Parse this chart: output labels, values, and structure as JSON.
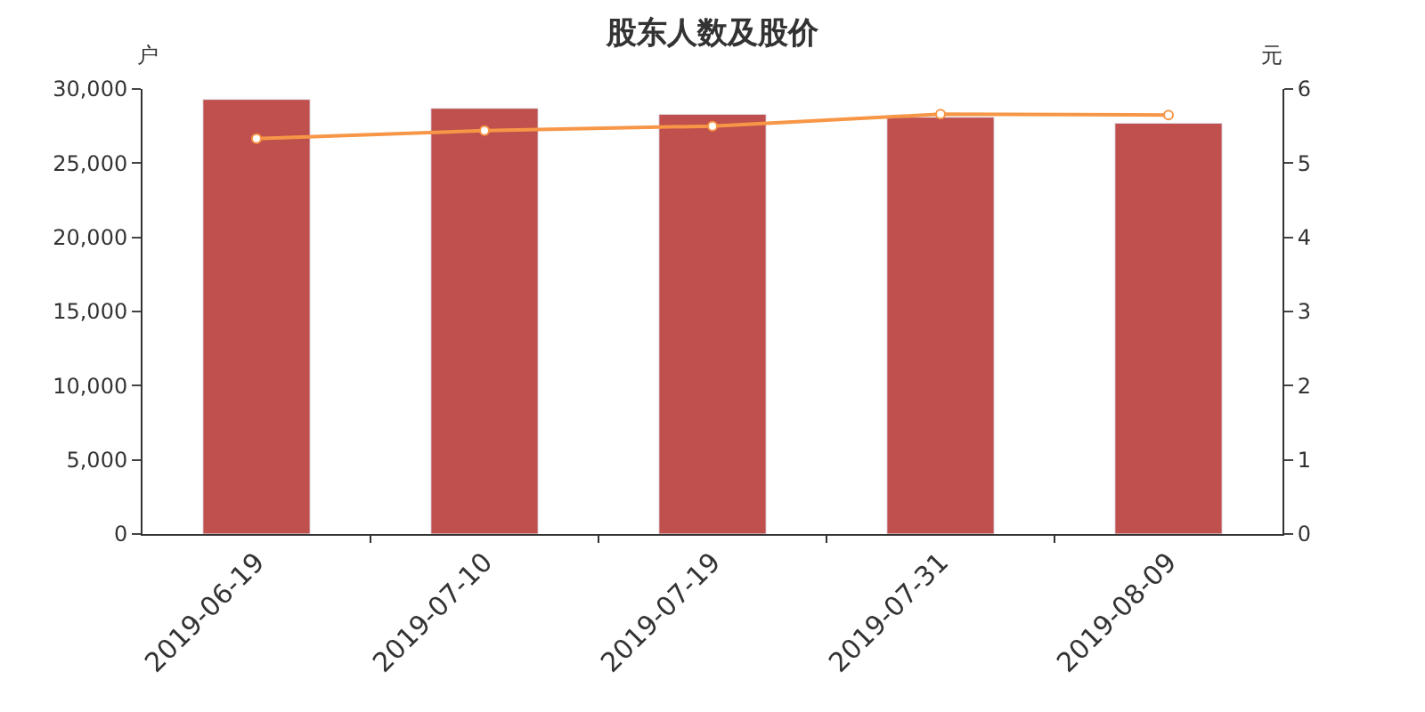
{
  "chart_data": {
    "type": "bar",
    "title": "股东人数及股价",
    "ylabel": "户",
    "y2label": "元",
    "categories": [
      "2019-06-19",
      "2019-07-10",
      "2019-07-19",
      "2019-07-31",
      "2019-08-09"
    ],
    "series": [
      {
        "color": "#c0504d",
        "values": [
          29300,
          28700,
          28300,
          28100,
          27700
        ]
      },
      {
        "type": "line",
        "axis": "y2",
        "color": "#f79646",
        "marker": "circle",
        "values": [
          5.33,
          5.44,
          5.5,
          5.66,
          5.65
        ]
      }
    ],
    "ylim": [
      0,
      30000
    ],
    "yticks": [
      {
        "value": 0,
        "label": "0"
      },
      {
        "value": 5000,
        "label": "5,000"
      },
      {
        "value": 10000,
        "label": "10,000"
      },
      {
        "value": 15000,
        "label": "15,000"
      },
      {
        "value": 20000,
        "label": "20,000"
      },
      {
        "value": 25000,
        "label": "25,000"
      },
      {
        "value": 30000,
        "label": "30,000"
      }
    ],
    "y2lim": [
      0,
      6
    ],
    "y2ticks": [
      0,
      1,
      2,
      3,
      4,
      5,
      6
    ]
  }
}
